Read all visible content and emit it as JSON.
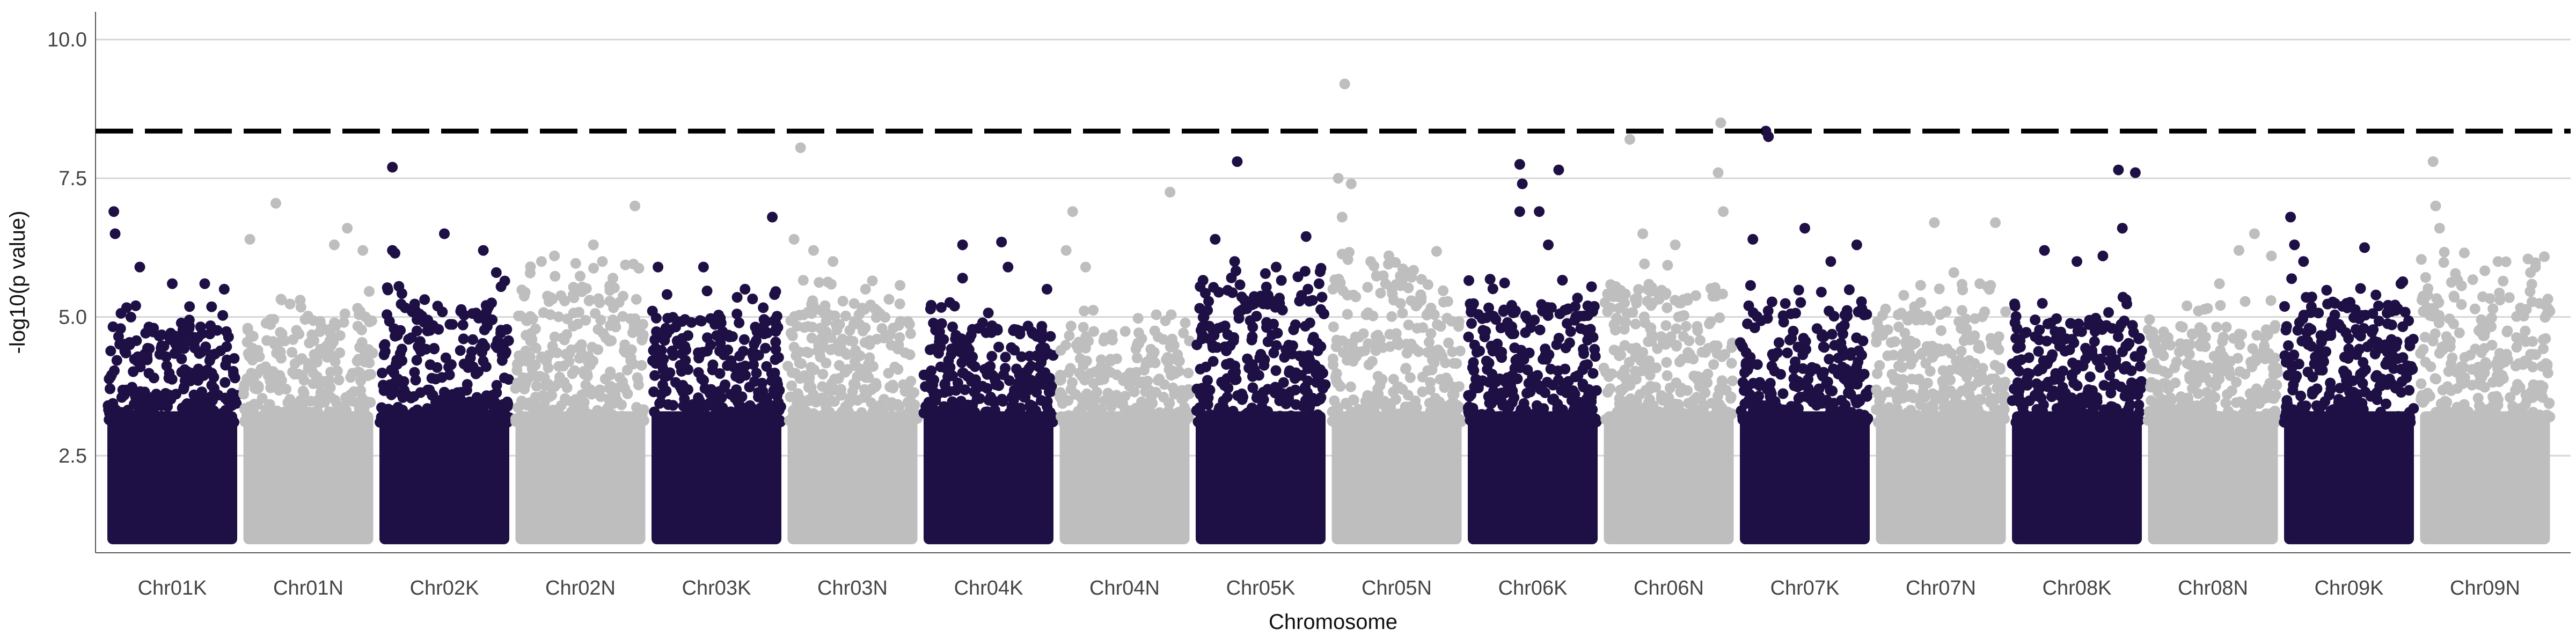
{
  "chart_data": {
    "type": "scatter",
    "subtype": "manhattan",
    "title": "",
    "xlabel": "Chromosome",
    "ylabel": "-log10(p value)",
    "ylim": [
      0.75,
      10.5
    ],
    "yticks": [
      2.5,
      5.0,
      7.5,
      10.0
    ],
    "ytick_labels": [
      "2.5",
      "5.0",
      "7.5",
      "10.0"
    ],
    "grid": "horizontal",
    "legend": "none",
    "threshold": 8.35,
    "threshold_style": "dashed",
    "colors": {
      "odd": "#1e1045",
      "even": "#bebebe",
      "threshold": "#000000",
      "grid": "#d6d6d6",
      "axis": "#555555"
    },
    "categories": [
      "Chr01K",
      "Chr01N",
      "Chr02K",
      "Chr02N",
      "Chr03K",
      "Chr03N",
      "Chr04K",
      "Chr04N",
      "Chr05K",
      "Chr05N",
      "Chr06K",
      "Chr06N",
      "Chr07K",
      "Chr07N",
      "Chr08K",
      "Chr08N",
      "Chr09K",
      "Chr09N"
    ],
    "series": [
      {
        "chromosome": "Chr01K",
        "color_group": "odd",
        "dense_max": 4.6,
        "top_hits": [
          [
            0.05,
            6.9
          ],
          [
            0.06,
            6.5
          ],
          [
            0.25,
            5.9
          ],
          [
            0.5,
            5.6
          ],
          [
            0.75,
            5.6
          ],
          [
            0.9,
            5.5
          ]
        ]
      },
      {
        "chromosome": "Chr01N",
        "color_group": "even",
        "dense_max": 4.8,
        "top_hits": [
          [
            0.05,
            6.4
          ],
          [
            0.25,
            7.05
          ],
          [
            0.7,
            6.3
          ],
          [
            0.8,
            6.6
          ],
          [
            0.92,
            6.2
          ]
        ]
      },
      {
        "chromosome": "Chr02K",
        "color_group": "odd",
        "dense_max": 5.0,
        "top_hits": [
          [
            0.1,
            7.7
          ],
          [
            0.1,
            6.2
          ],
          [
            0.12,
            6.15
          ],
          [
            0.5,
            6.5
          ],
          [
            0.8,
            6.2
          ],
          [
            0.9,
            5.8
          ]
        ]
      },
      {
        "chromosome": "Chr02N",
        "color_group": "even",
        "dense_max": 5.3,
        "top_hits": [
          [
            0.2,
            6.0
          ],
          [
            0.3,
            6.1
          ],
          [
            0.6,
            6.3
          ],
          [
            0.92,
            7.0
          ],
          [
            0.75,
            5.7
          ]
        ]
      },
      {
        "chromosome": "Chr03K",
        "color_group": "odd",
        "dense_max": 4.8,
        "top_hits": [
          [
            0.05,
            5.9
          ],
          [
            0.4,
            5.9
          ],
          [
            0.72,
            5.5
          ],
          [
            0.93,
            6.8
          ]
        ]
      },
      {
        "chromosome": "Chr03N",
        "color_group": "even",
        "dense_max": 5.0,
        "top_hits": [
          [
            0.1,
            8.05
          ],
          [
            0.05,
            6.4
          ],
          [
            0.2,
            6.2
          ],
          [
            0.35,
            6.0
          ],
          [
            0.6,
            5.5
          ]
        ]
      },
      {
        "chromosome": "Chr04K",
        "color_group": "odd",
        "dense_max": 4.6,
        "top_hits": [
          [
            0.3,
            6.3
          ],
          [
            0.3,
            5.7
          ],
          [
            0.6,
            6.35
          ],
          [
            0.65,
            5.9
          ],
          [
            0.95,
            5.5
          ]
        ]
      },
      {
        "chromosome": "Chr04N",
        "color_group": "even",
        "dense_max": 4.5,
        "top_hits": [
          [
            0.05,
            6.2
          ],
          [
            0.1,
            6.9
          ],
          [
            0.2,
            5.9
          ],
          [
            0.85,
            7.25
          ]
        ]
      },
      {
        "chromosome": "Chr05K",
        "color_group": "odd",
        "dense_max": 5.3,
        "top_hits": [
          [
            0.15,
            6.4
          ],
          [
            0.3,
            6.0
          ],
          [
            0.32,
            7.8
          ],
          [
            0.62,
            5.9
          ],
          [
            0.85,
            6.45
          ],
          [
            0.95,
            5.6
          ]
        ]
      },
      {
        "chromosome": "Chr05N",
        "color_group": "even",
        "dense_max": 5.5,
        "top_hits": [
          [
            0.1,
            9.2
          ],
          [
            0.05,
            7.5
          ],
          [
            0.15,
            7.4
          ],
          [
            0.08,
            6.8
          ],
          [
            0.3,
            6.0
          ],
          [
            0.6,
            5.8
          ]
        ]
      },
      {
        "chromosome": "Chr06K",
        "color_group": "odd",
        "dense_max": 5.0,
        "top_hits": [
          [
            0.4,
            7.75
          ],
          [
            0.42,
            7.4
          ],
          [
            0.4,
            6.9
          ],
          [
            0.7,
            7.65
          ],
          [
            0.55,
            6.9
          ],
          [
            0.62,
            6.3
          ]
        ]
      },
      {
        "chromosome": "Chr06N",
        "color_group": "even",
        "dense_max": 5.3,
        "top_hits": [
          [
            0.2,
            8.2
          ],
          [
            0.3,
            6.5
          ],
          [
            0.55,
            6.3
          ],
          [
            0.9,
            8.5
          ],
          [
            0.88,
            7.6
          ],
          [
            0.92,
            6.9
          ]
        ]
      },
      {
        "chromosome": "Chr07K",
        "color_group": "odd",
        "dense_max": 4.9,
        "top_hits": [
          [
            0.2,
            8.35
          ],
          [
            0.22,
            8.25
          ],
          [
            0.1,
            6.4
          ],
          [
            0.5,
            6.6
          ],
          [
            0.7,
            6.0
          ],
          [
            0.9,
            6.3
          ]
        ]
      },
      {
        "chromosome": "Chr07N",
        "color_group": "even",
        "dense_max": 4.9,
        "top_hits": [
          [
            0.45,
            6.7
          ],
          [
            0.6,
            5.8
          ],
          [
            0.8,
            5.6
          ],
          [
            0.92,
            6.7
          ]
        ]
      },
      {
        "chromosome": "Chr08K",
        "color_group": "odd",
        "dense_max": 4.7,
        "top_hits": [
          [
            0.25,
            6.2
          ],
          [
            0.5,
            6.0
          ],
          [
            0.82,
            7.65
          ],
          [
            0.95,
            7.6
          ],
          [
            0.85,
            6.6
          ],
          [
            0.7,
            6.1
          ]
        ]
      },
      {
        "chromosome": "Chr08N",
        "color_group": "even",
        "dense_max": 4.6,
        "top_hits": [
          [
            0.3,
            5.2
          ],
          [
            0.55,
            5.6
          ],
          [
            0.7,
            6.2
          ],
          [
            0.82,
            6.5
          ],
          [
            0.95,
            6.1
          ]
        ]
      },
      {
        "chromosome": "Chr09K",
        "color_group": "odd",
        "dense_max": 5.0,
        "top_hits": [
          [
            0.05,
            6.8
          ],
          [
            0.08,
            6.3
          ],
          [
            0.15,
            6.0
          ],
          [
            0.62,
            6.25
          ],
          [
            0.9,
            5.6
          ]
        ]
      },
      {
        "chromosome": "Chr09N",
        "color_group": "even",
        "dense_max": 5.5,
        "top_hits": [
          [
            0.1,
            7.8
          ],
          [
            0.12,
            7.0
          ],
          [
            0.15,
            6.6
          ],
          [
            0.6,
            6.0
          ],
          [
            0.85,
            5.8
          ]
        ]
      }
    ]
  }
}
